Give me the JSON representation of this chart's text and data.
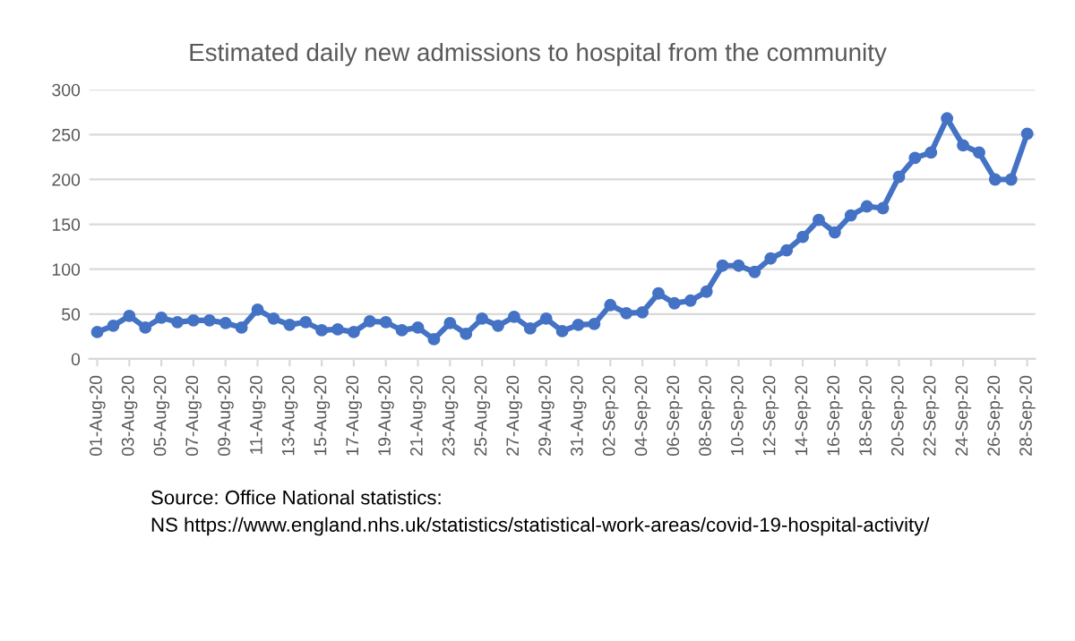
{
  "chart_data": {
    "type": "line",
    "title": "Estimated daily new admissions to hospital from the community",
    "categories": [
      "01-Aug-20",
      null,
      "03-Aug-20",
      null,
      "05-Aug-20",
      null,
      "07-Aug-20",
      null,
      "09-Aug-20",
      null,
      "11-Aug-20",
      null,
      "13-Aug-20",
      null,
      "15-Aug-20",
      null,
      "17-Aug-20",
      null,
      "19-Aug-20",
      null,
      "21-Aug-20",
      null,
      "23-Aug-20",
      null,
      "25-Aug-20",
      null,
      "27-Aug-20",
      null,
      "29-Aug-20",
      null,
      "31-Aug-20",
      null,
      "02-Sep-20",
      null,
      "04-Sep-20",
      null,
      "06-Sep-20",
      null,
      "08-Sep-20",
      null,
      "10-Sep-20",
      null,
      "12-Sep-20",
      null,
      "14-Sep-20",
      null,
      "16-Sep-20",
      null,
      "18-Sep-20",
      null,
      "20-Sep-20",
      null,
      "22-Sep-20",
      null,
      "24-Sep-20",
      null,
      "26-Sep-20",
      null,
      "28-Sep-20"
    ],
    "series": [
      {
        "color": "#4472c4",
        "values": [
          30,
          37,
          48,
          35,
          46,
          41,
          43,
          43,
          40,
          35,
          55,
          45,
          38,
          41,
          32,
          33,
          30,
          42,
          41,
          32,
          35,
          22,
          40,
          28,
          45,
          37,
          47,
          34,
          45,
          31,
          38,
          39,
          60,
          51,
          52,
          73,
          62,
          65,
          75,
          104,
          104,
          97,
          112,
          121,
          136,
          155,
          141,
          160,
          170,
          168,
          203,
          224,
          230,
          268,
          238,
          230,
          200,
          200,
          251
        ]
      }
    ],
    "ylim": [
      0,
      300
    ],
    "yticks": [
      0,
      50,
      100,
      150,
      200,
      250,
      300
    ],
    "grid": "y",
    "marker": "circle",
    "line_style": "solid",
    "legend": false,
    "annotations": [
      "Source: Office National statistics:\nNS https://www.england.nhs.uk/statistics/statistical-work-areas/covid-19-hospital-activity/"
    ]
  }
}
